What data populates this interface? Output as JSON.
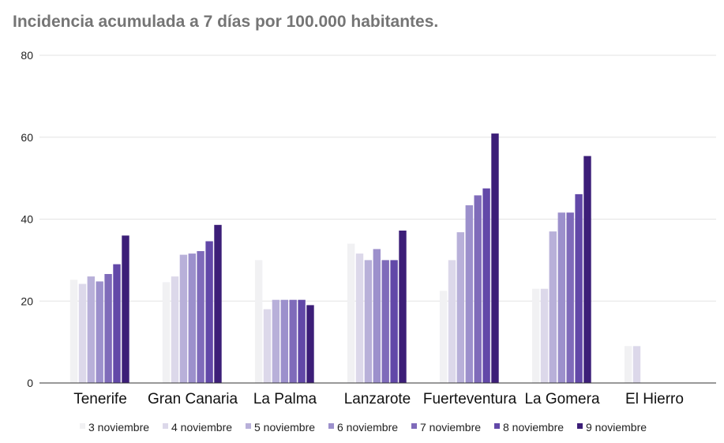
{
  "chart_data": {
    "type": "bar",
    "title": "Incidencia acumulada a 7 días por 100.000 habitantes.",
    "xlabel": "",
    "ylabel": "",
    "ylim": [
      0,
      80
    ],
    "yticks": [
      "0",
      "20",
      "40",
      "60",
      "80"
    ],
    "grid": true,
    "legend_position": "bottom",
    "categories": [
      "Tenerife",
      "Gran Canaria",
      "La Palma",
      "Lanzarote",
      "Fuerteventura",
      "La Gomera",
      "El Hierro"
    ],
    "series": [
      {
        "name": "3 noviembre",
        "color": "#f1f1f3",
        "values": [
          25.2,
          24.6,
          30.0,
          34.0,
          22.5,
          23.0,
          9.0
        ]
      },
      {
        "name": "4 noviembre",
        "color": "#dcd8ea",
        "values": [
          24.2,
          26.0,
          18.0,
          31.6,
          30.0,
          23.0,
          9.0
        ]
      },
      {
        "name": "5 noviembre",
        "color": "#b8b0d9",
        "values": [
          26.0,
          31.3,
          20.3,
          30.0,
          36.8,
          37.0,
          0
        ]
      },
      {
        "name": "6 noviembre",
        "color": "#9c90cc",
        "values": [
          24.8,
          31.6,
          20.3,
          32.7,
          43.4,
          41.6,
          0
        ]
      },
      {
        "name": "7 noviembre",
        "color": "#7f6bba",
        "values": [
          26.6,
          32.2,
          20.3,
          30.0,
          45.8,
          41.6,
          0
        ]
      },
      {
        "name": "8 noviembre",
        "color": "#6248a8",
        "values": [
          29.0,
          34.6,
          20.3,
          30.0,
          47.5,
          46.1,
          0
        ]
      },
      {
        "name": "9 noviembre",
        "color": "#3c1e78",
        "values": [
          36.0,
          38.6,
          19.0,
          37.2,
          60.9,
          55.4,
          0
        ]
      }
    ]
  }
}
